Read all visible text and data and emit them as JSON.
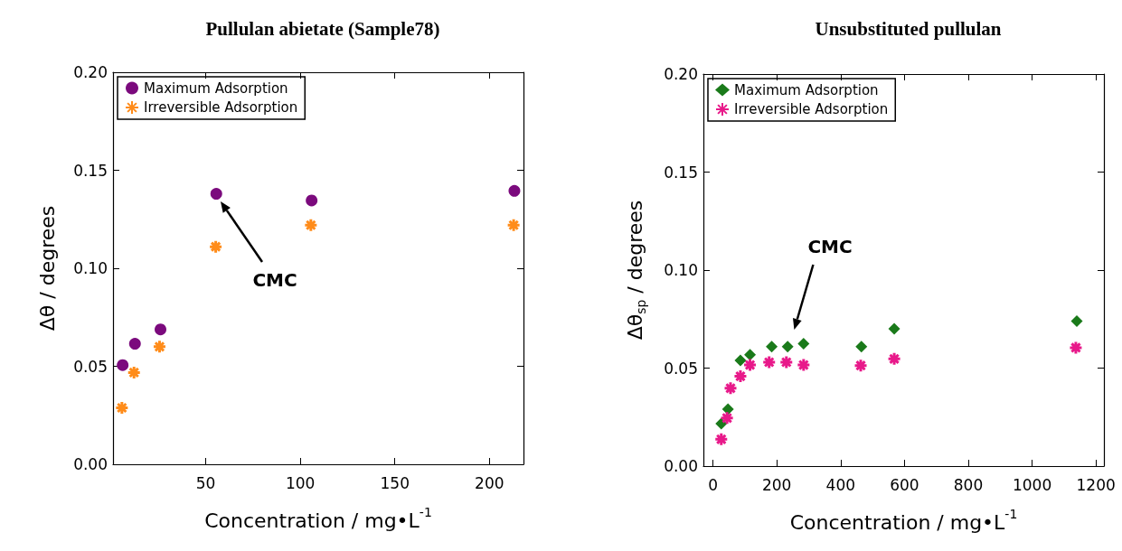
{
  "chart_data": [
    {
      "type": "scatter",
      "title": "Pullulan abietate (Sample78)",
      "xlabel": "Concentration / mg•L$^{-1}$",
      "ylabel": "Δθ / degrees",
      "xlim": [
        1,
        218
      ],
      "xticks": [
        50,
        100,
        150,
        200
      ],
      "ylim": [
        0,
        0.2
      ],
      "yticks": [
        {
          "value": 0,
          "label": "0.00"
        },
        {
          "value": 0.05,
          "label": "0.05"
        },
        {
          "value": 0.1,
          "label": "0.10"
        },
        {
          "value": 0.15,
          "label": "0.15"
        },
        {
          "value": 0.2,
          "label": "0.20"
        }
      ],
      "grid": false,
      "legend": "top left",
      "annotations": [
        "CMC"
      ],
      "series": [
        {
          "name": "Maximum Adsorption",
          "color": "#7b0a7d",
          "marker": "circle",
          "x": [
            6.1,
            12.6,
            26.1,
            55.6,
            106,
            213.2
          ],
          "values": [
            0.0506,
            0.0615,
            0.0688,
            0.138,
            0.1346,
            0.1395
          ]
        },
        {
          "name": "Irreversible Adsorption",
          "color": "#ff8c1a",
          "marker": "cross",
          "x": [
            5.7,
            12.1,
            25.6,
            55.3,
            105.6,
            212.8
          ],
          "values": [
            0.0288,
            0.0468,
            0.06,
            0.111,
            0.122,
            0.122
          ]
        }
      ]
    },
    {
      "type": "scatter",
      "title": "Unsubstituted pullulan",
      "xlabel": "Concentration / mg•L$^{-1}$",
      "ylabel": "Δθ$_{sp}$ / degrees",
      "xlim": [
        -30,
        1225
      ],
      "xticks": [
        0,
        200,
        400,
        600,
        800,
        1000,
        1200
      ],
      "ylim": [
        0,
        0.2
      ],
      "yticks": [
        {
          "value": 0,
          "label": "0.00"
        },
        {
          "value": 0.05,
          "label": "0.05"
        },
        {
          "value": 0.1,
          "label": "0.10"
        },
        {
          "value": 0.15,
          "label": "0.15"
        },
        {
          "value": 0.2,
          "label": "0.20"
        }
      ],
      "grid": false,
      "legend": "top left",
      "annotations": [
        "CMC"
      ],
      "series": [
        {
          "name": "Maximum Adsorption",
          "color": "#1a7a1a",
          "marker": "diamond",
          "x": [
            26,
            47,
            86,
            116,
            184,
            234,
            284,
            465,
            568,
            1140
          ],
          "values": [
            0.0217,
            0.029,
            0.0539,
            0.0568,
            0.061,
            0.061,
            0.0624,
            0.061,
            0.0701,
            0.074
          ]
        },
        {
          "name": "Irreversible Adsorption",
          "color": "#e8198a",
          "marker": "cross",
          "x": [
            26,
            44,
            55,
            86,
            116,
            176,
            230,
            284,
            463,
            568,
            1137
          ],
          "values": [
            0.0137,
            0.0245,
            0.0397,
            0.0458,
            0.0516,
            0.053,
            0.053,
            0.0516,
            0.0513,
            0.0547,
            0.0604
          ]
        }
      ]
    }
  ]
}
